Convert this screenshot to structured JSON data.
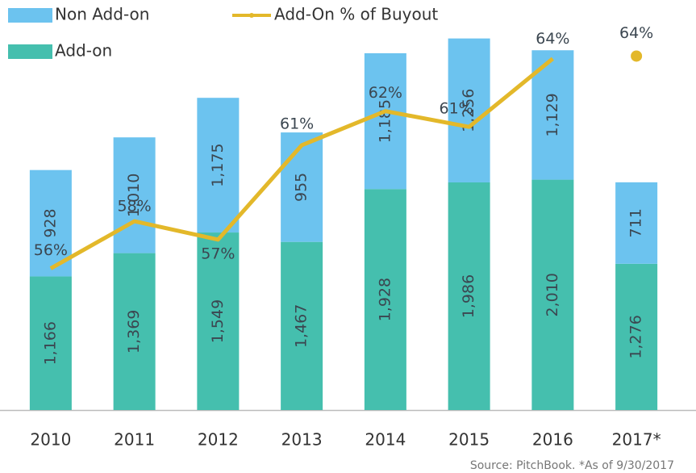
{
  "chart_data": {
    "type": "bar",
    "stacked": true,
    "categories": [
      "2010",
      "2011",
      "2012",
      "2013",
      "2014",
      "2015",
      "2016",
      "2017*"
    ],
    "series": [
      {
        "name": "Add-on",
        "color": "#45bfae",
        "values": [
          1166,
          1369,
          1549,
          1467,
          1928,
          1986,
          2010,
          1276
        ],
        "value_labels": [
          "1,166",
          "1,369",
          "1,549",
          "1,467",
          "1,928",
          "1,986",
          "2,010",
          "1,276"
        ]
      },
      {
        "name": "Non Add-on",
        "color": "#6cc3ef",
        "values": [
          928,
          1010,
          1175,
          955,
          1185,
          1256,
          1129,
          711
        ],
        "value_labels": [
          "928",
          "1,010",
          "1,175",
          "955",
          "1,185",
          "1,256",
          "1,129",
          "711"
        ]
      },
      {
        "name": "Add-On % of Buyout",
        "color": "#e3b82a",
        "type": "line",
        "axis": "y2",
        "values": [
          56,
          57.8,
          57.1,
          60.7,
          62,
          61.4,
          64,
          64.1
        ],
        "value_labels": [
          "56%",
          "58%",
          "57%",
          "61%",
          "62%",
          "61%",
          "64%",
          "64%"
        ]
      }
    ],
    "ylim": [
      0,
      3500
    ],
    "y2lim": [
      50.6,
      65.9
    ],
    "source": "Source: PitchBook. *As of 9/30/2017"
  }
}
